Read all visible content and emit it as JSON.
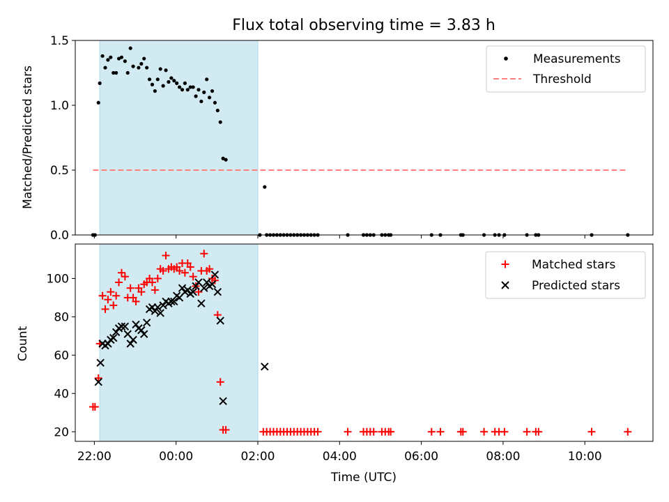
{
  "colors": {
    "measurement": "#000000",
    "threshold": "#ff7f7f",
    "matched": "#ff0000",
    "predicted": "#000000",
    "observing_window": "#add8e6"
  },
  "chart_data": [
    {
      "type": "scatter",
      "title": "Flux total observing time = 3.83 h",
      "ylabel": "Matched/Predicted stars",
      "xlabel": "",
      "x_unit": "hours since 22:00 UTC",
      "xlim": [
        "21:32",
        "11:40"
      ],
      "ylim": [
        0,
        1.5
      ],
      "yticks": [
        0.0,
        0.5,
        1.0,
        1.5
      ],
      "ytick_labels": [
        "0.0",
        "0.5",
        "1.0",
        "1.5"
      ],
      "grid": false,
      "legend": "top-right",
      "observing_window": [
        "22:08",
        "02:00"
      ],
      "threshold": 0.5,
      "series": [
        {
          "name": "Measurements",
          "marker": "dot",
          "points": [
            [
              "21:58",
              0.0
            ],
            [
              "22:01",
              0.0
            ],
            [
              "22:06",
              1.02
            ],
            [
              "22:08",
              1.17
            ],
            [
              "22:12",
              1.38
            ],
            [
              "22:16",
              1.29
            ],
            [
              "22:20",
              1.35
            ],
            [
              "22:24",
              1.37
            ],
            [
              "22:28",
              1.25
            ],
            [
              "22:32",
              1.25
            ],
            [
              "22:36",
              1.36
            ],
            [
              "22:40",
              1.37
            ],
            [
              "22:45",
              1.34
            ],
            [
              "22:49",
              1.25
            ],
            [
              "22:53",
              1.44
            ],
            [
              "22:57",
              1.3
            ],
            [
              "23:05",
              1.29
            ],
            [
              "23:09",
              1.32
            ],
            [
              "23:13",
              1.36
            ],
            [
              "23:17",
              1.29
            ],
            [
              "23:21",
              1.2
            ],
            [
              "23:25",
              1.16
            ],
            [
              "23:29",
              1.11
            ],
            [
              "23:33",
              1.2
            ],
            [
              "23:37",
              1.28
            ],
            [
              "23:41",
              1.15
            ],
            [
              "23:45",
              1.27
            ],
            [
              "23:49",
              1.18
            ],
            [
              "23:53",
              1.21
            ],
            [
              "23:57",
              1.19
            ],
            [
              "00:01",
              1.17
            ],
            [
              "00:05",
              1.14
            ],
            [
              "00:09",
              1.12
            ],
            [
              "00:13",
              1.17
            ],
            [
              "00:17",
              1.12
            ],
            [
              "00:21",
              1.14
            ],
            [
              "00:25",
              1.14
            ],
            [
              "00:29",
              1.07
            ],
            [
              "00:33",
              1.12
            ],
            [
              "00:37",
              1.03
            ],
            [
              "00:41",
              1.1
            ],
            [
              "00:45",
              1.2
            ],
            [
              "00:49",
              1.06
            ],
            [
              "00:53",
              1.11
            ],
            [
              "00:57",
              1.02
            ],
            [
              "01:01",
              0.96
            ],
            [
              "01:05",
              0.87
            ],
            [
              "01:09",
              0.59
            ],
            [
              "01:13",
              0.58
            ],
            [
              "02:03",
              0.0
            ],
            [
              "02:10",
              0.37
            ],
            [
              "02:13",
              0.0
            ],
            [
              "02:18",
              0.0
            ],
            [
              "02:23",
              0.0
            ],
            [
              "02:28",
              0.0
            ],
            [
              "02:33",
              0.0
            ],
            [
              "02:38",
              0.0
            ],
            [
              "02:43",
              0.0
            ],
            [
              "02:48",
              0.0
            ],
            [
              "02:53",
              0.0
            ],
            [
              "02:58",
              0.0
            ],
            [
              "03:03",
              0.0
            ],
            [
              "03:08",
              0.0
            ],
            [
              "03:13",
              0.0
            ],
            [
              "03:18",
              0.0
            ],
            [
              "03:23",
              0.0
            ],
            [
              "03:28",
              0.0
            ],
            [
              "04:12",
              0.0
            ],
            [
              "04:35",
              0.0
            ],
            [
              "04:40",
              0.0
            ],
            [
              "04:45",
              0.0
            ],
            [
              "04:50",
              0.0
            ],
            [
              "05:02",
              0.0
            ],
            [
              "05:07",
              0.0
            ],
            [
              "05:12",
              0.0
            ],
            [
              "05:15",
              0.0
            ],
            [
              "06:15",
              0.0
            ],
            [
              "06:28",
              0.0
            ],
            [
              "06:58",
              0.0
            ],
            [
              "07:01",
              0.0
            ],
            [
              "07:32",
              0.0
            ],
            [
              "07:48",
              0.0
            ],
            [
              "07:54",
              0.0
            ],
            [
              "08:02",
              0.0
            ],
            [
              "08:35",
              0.0
            ],
            [
              "08:48",
              0.0
            ],
            [
              "08:52",
              0.0
            ],
            [
              "10:10",
              0.0
            ],
            [
              "11:03",
              0.0
            ]
          ]
        },
        {
          "name": "Threshold",
          "marker": "dashed-line",
          "points": [
            [
              "21:58",
              0.5
            ],
            [
              "11:03",
              0.5
            ]
          ]
        }
      ]
    },
    {
      "type": "scatter",
      "title": "",
      "ylabel": "Count",
      "xlabel": "Time (UTC)",
      "xlim": [
        "21:32",
        "11:40"
      ],
      "ylim": [
        15,
        118
      ],
      "yticks": [
        20,
        40,
        60,
        80,
        100
      ],
      "ytick_labels": [
        "20",
        "40",
        "60",
        "80",
        "100"
      ],
      "xticks": [
        "22:00",
        "00:00",
        "02:00",
        "04:00",
        "06:00",
        "08:00",
        "10:00"
      ],
      "xtick_labels": [
        "22:00",
        "00:00",
        "02:00",
        "04:00",
        "06:00",
        "08:00",
        "10:00"
      ],
      "grid": false,
      "legend": "top-right",
      "observing_window": [
        "22:08",
        "02:00"
      ],
      "series": [
        {
          "name": "Matched stars",
          "marker": "plus",
          "points": [
            [
              "21:58",
              33
            ],
            [
              "22:01",
              33
            ],
            [
              "22:06",
              48
            ],
            [
              "22:08",
              66
            ],
            [
              "22:12",
              91
            ],
            [
              "22:16",
              84
            ],
            [
              "22:20",
              89
            ],
            [
              "22:24",
              93
            ],
            [
              "22:28",
              86
            ],
            [
              "22:32",
              91
            ],
            [
              "22:36",
              98
            ],
            [
              "22:40",
              103
            ],
            [
              "22:45",
              101
            ],
            [
              "22:49",
              90
            ],
            [
              "22:53",
              95
            ],
            [
              "22:57",
              90
            ],
            [
              "23:01",
              88
            ],
            [
              "23:05",
              95
            ],
            [
              "23:09",
              93
            ],
            [
              "23:13",
              97
            ],
            [
              "23:17",
              98
            ],
            [
              "23:21",
              100
            ],
            [
              "23:25",
              98
            ],
            [
              "23:29",
              94
            ],
            [
              "23:33",
              100
            ],
            [
              "23:37",
              105
            ],
            [
              "23:41",
              104
            ],
            [
              "23:45",
              112
            ],
            [
              "23:49",
              105
            ],
            [
              "23:53",
              106
            ],
            [
              "23:57",
              105
            ],
            [
              "00:01",
              106
            ],
            [
              "00:05",
              104
            ],
            [
              "00:09",
              108
            ],
            [
              "00:13",
              103
            ],
            [
              "00:17",
              108
            ],
            [
              "00:21",
              106
            ],
            [
              "00:25",
              101
            ],
            [
              "00:29",
              96
            ],
            [
              "00:33",
              93
            ],
            [
              "00:37",
              104
            ],
            [
              "00:41",
              113
            ],
            [
              "00:45",
              104
            ],
            [
              "00:49",
              105
            ],
            [
              "00:53",
              100
            ],
            [
              "00:57",
              99
            ],
            [
              "01:01",
              81
            ],
            [
              "01:05",
              46
            ],
            [
              "01:09",
              21
            ],
            [
              "01:13",
              21
            ],
            [
              "02:08",
              20
            ],
            [
              "02:13",
              20
            ],
            [
              "02:18",
              20
            ],
            [
              "02:23",
              20
            ],
            [
              "02:28",
              20
            ],
            [
              "02:33",
              20
            ],
            [
              "02:38",
              20
            ],
            [
              "02:43",
              20
            ],
            [
              "02:48",
              20
            ],
            [
              "02:53",
              20
            ],
            [
              "02:58",
              20
            ],
            [
              "03:03",
              20
            ],
            [
              "03:08",
              20
            ],
            [
              "03:13",
              20
            ],
            [
              "03:18",
              20
            ],
            [
              "03:23",
              20
            ],
            [
              "03:28",
              20
            ],
            [
              "04:12",
              20
            ],
            [
              "04:35",
              20
            ],
            [
              "04:40",
              20
            ],
            [
              "04:45",
              20
            ],
            [
              "04:50",
              20
            ],
            [
              "05:02",
              20
            ],
            [
              "05:07",
              20
            ],
            [
              "05:12",
              20
            ],
            [
              "05:15",
              20
            ],
            [
              "06:15",
              20
            ],
            [
              "06:28",
              20
            ],
            [
              "06:58",
              20
            ],
            [
              "07:01",
              20
            ],
            [
              "07:32",
              20
            ],
            [
              "07:48",
              20
            ],
            [
              "07:54",
              20
            ],
            [
              "08:02",
              20
            ],
            [
              "08:35",
              20
            ],
            [
              "08:48",
              20
            ],
            [
              "08:52",
              20
            ],
            [
              "10:10",
              20
            ],
            [
              "11:03",
              20
            ]
          ]
        },
        {
          "name": "Predicted stars",
          "marker": "x",
          "points": [
            [
              "22:06",
              46
            ],
            [
              "22:09",
              56
            ],
            [
              "22:12",
              66
            ],
            [
              "22:16",
              65
            ],
            [
              "22:20",
              66
            ],
            [
              "22:24",
              68
            ],
            [
              "22:28",
              69
            ],
            [
              "22:32",
              72
            ],
            [
              "22:36",
              74
            ],
            [
              "22:40",
              75
            ],
            [
              "22:45",
              75
            ],
            [
              "22:49",
              71
            ],
            [
              "22:53",
              66
            ],
            [
              "22:57",
              68
            ],
            [
              "23:01",
              76
            ],
            [
              "23:05",
              74
            ],
            [
              "23:09",
              73
            ],
            [
              "23:13",
              71
            ],
            [
              "23:17",
              77
            ],
            [
              "23:21",
              84
            ],
            [
              "23:25",
              85
            ],
            [
              "23:29",
              83
            ],
            [
              "23:33",
              85
            ],
            [
              "23:37",
              82
            ],
            [
              "23:41",
              86
            ],
            [
              "23:45",
              88
            ],
            [
              "23:49",
              87
            ],
            [
              "23:53",
              88
            ],
            [
              "23:57",
              88
            ],
            [
              "00:01",
              91
            ],
            [
              "00:05",
              90
            ],
            [
              "00:09",
              95
            ],
            [
              "00:13",
              93
            ],
            [
              "00:17",
              94
            ],
            [
              "00:21",
              92
            ],
            [
              "00:25",
              93
            ],
            [
              "00:29",
              96
            ],
            [
              "00:33",
              98
            ],
            [
              "00:37",
              87
            ],
            [
              "00:41",
              95
            ],
            [
              "00:45",
              98
            ],
            [
              "00:49",
              96
            ],
            [
              "00:53",
              97
            ],
            [
              "00:57",
              102
            ],
            [
              "01:01",
              93
            ],
            [
              "01:05",
              78
            ],
            [
              "01:09",
              36
            ],
            [
              "02:10",
              54
            ]
          ]
        }
      ]
    }
  ]
}
